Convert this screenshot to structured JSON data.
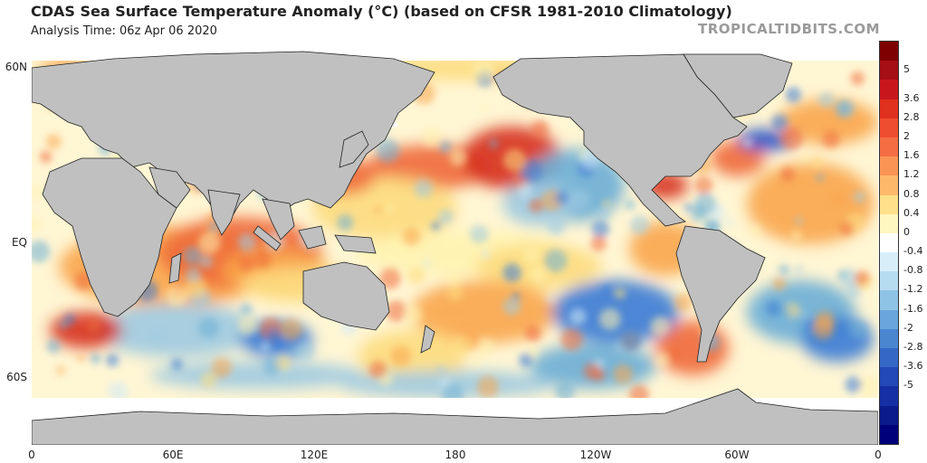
{
  "header": {
    "title": "CDAS Sea Surface Temperature Anomaly (°C) (based on CFSR 1981-2010 Climatology)",
    "subtitle": "Analysis Time: 06z Apr 06 2020",
    "brand": "TROPICALTIDBITS.COM"
  },
  "map": {
    "lat_labels": [
      "60N",
      "EQ",
      "60S"
    ],
    "lon_labels": [
      "0",
      "60E",
      "120E",
      "180",
      "120W",
      "60W",
      "0"
    ],
    "colors": {
      "land": "#c0c0c0",
      "ice": "#ffffff",
      "warm_1": "#fff3b0",
      "warm_2": "#fddc80",
      "warm_3": "#f9a64d",
      "warm_4": "#ef6a3a",
      "warm_5": "#d7301f",
      "cool_1": "#d2ebf7",
      "cool_2": "#9ecae1",
      "cool_3": "#6baed6",
      "cool_4": "#3a7bd5",
      "cool_5": "#1f4fc8"
    }
  },
  "colorbar": {
    "labels": [
      "5",
      "3.6",
      "2.8",
      "2",
      "1.6",
      "1.2",
      "0.8",
      "0.4",
      "0",
      "-0.4",
      "-0.8",
      "-1.2",
      "-1.6",
      "-2",
      "-2.8",
      "-3.6",
      "-5"
    ],
    "colors": [
      "#7f0000",
      "#a50f15",
      "#c8171c",
      "#e0301e",
      "#ef4d2f",
      "#f46d43",
      "#f99455",
      "#fdb96a",
      "#fee08b",
      "#fff6c0",
      "#ffffff",
      "#d8eef8",
      "#b6dcf0",
      "#8fc3e6",
      "#6aa6dc",
      "#4a86d0",
      "#3568c6",
      "#2349b8",
      "#1530a4",
      "#0b1b8a",
      "#00007a"
    ]
  }
}
